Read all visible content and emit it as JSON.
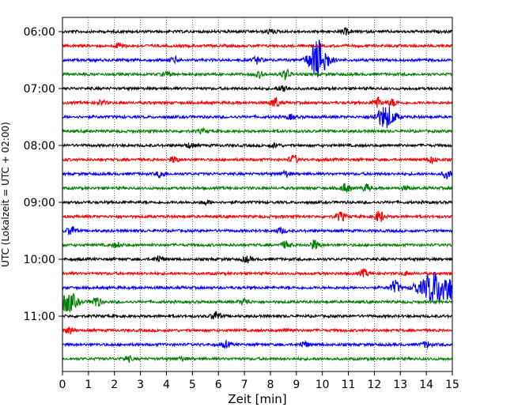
{
  "chart_data": {
    "type": "line",
    "xlabel": "Zeit  [min]",
    "ylabel": "UTC (Lokalzeit = UTC + 02:00)",
    "xlim": [
      0,
      15
    ],
    "xticks": [
      "0",
      "1",
      "2",
      "3",
      "4",
      "5",
      "6",
      "7",
      "8",
      "9",
      "10",
      "11",
      "12",
      "13",
      "14",
      "15"
    ],
    "yticks": [
      "06:00",
      "07:00",
      "08:00",
      "09:00",
      "10:00",
      "11:00"
    ],
    "row_minutes": 15,
    "grid": "vertical-dotted",
    "colors": [
      "#000000",
      "#ff0000",
      "#0000ff",
      "#008000"
    ],
    "rows": [
      {
        "start": "06:00",
        "color": "#000000",
        "events": [
          [
            8,
            0.4
          ],
          [
            10.9,
            0.5
          ]
        ]
      },
      {
        "start": "06:15",
        "color": "#ff0000",
        "events": [
          [
            2.2,
            0.5
          ]
        ]
      },
      {
        "start": "06:30",
        "color": "#0000ff",
        "events": [
          [
            4.3,
            0.5
          ],
          [
            7.5,
            0.6
          ],
          [
            9.85,
            3.6
          ]
        ]
      },
      {
        "start": "06:45",
        "color": "#008000",
        "events": [
          [
            4,
            0.4
          ],
          [
            7.6,
            0.5
          ],
          [
            8.6,
            0.9
          ]
        ]
      },
      {
        "start": "07:00",
        "color": "#000000",
        "events": [
          [
            8.5,
            0.6
          ]
        ]
      },
      {
        "start": "07:15",
        "color": "#ff0000",
        "events": [
          [
            1.5,
            0.4
          ],
          [
            8.2,
            0.9
          ],
          [
            12.1,
            1.0
          ],
          [
            12.7,
            0.6
          ]
        ]
      },
      {
        "start": "07:30",
        "color": "#0000ff",
        "events": [
          [
            8.8,
            0.4
          ],
          [
            12.45,
            2.0
          ]
        ]
      },
      {
        "start": "07:45",
        "color": "#008000",
        "events": [
          [
            5.4,
            0.3
          ]
        ]
      },
      {
        "start": "08:00",
        "color": "#000000",
        "events": [
          [
            4.9,
            0.4
          ],
          [
            8.2,
            0.4
          ]
        ]
      },
      {
        "start": "08:15",
        "color": "#ff0000",
        "events": [
          [
            4.3,
            0.5
          ],
          [
            8.9,
            0.7
          ],
          [
            14.2,
            0.5
          ]
        ]
      },
      {
        "start": "08:30",
        "color": "#0000ff",
        "events": [
          [
            3.8,
            0.6
          ],
          [
            8.6,
            0.5
          ],
          [
            14.8,
            0.7
          ]
        ]
      },
      {
        "start": "08:45",
        "color": "#008000",
        "events": [
          [
            10.9,
            0.8
          ],
          [
            11.7,
            0.6
          ],
          [
            13.2,
            0.3
          ]
        ]
      },
      {
        "start": "09:00",
        "color": "#000000",
        "events": [
          [
            5.5,
            0.3
          ]
        ]
      },
      {
        "start": "09:15",
        "color": "#ff0000",
        "events": [
          [
            10.7,
            0.8
          ],
          [
            12.2,
            1.0
          ]
        ]
      },
      {
        "start": "09:30",
        "color": "#0000ff",
        "events": [
          [
            0.35,
            0.8
          ],
          [
            8.4,
            0.5
          ]
        ]
      },
      {
        "start": "09:45",
        "color": "#008000",
        "events": [
          [
            2.1,
            0.4
          ],
          [
            8.6,
            0.6
          ],
          [
            9.7,
            0.8
          ]
        ]
      },
      {
        "start": "10:00",
        "color": "#000000",
        "events": [
          [
            3.7,
            0.6
          ],
          [
            7.1,
            0.5
          ]
        ]
      },
      {
        "start": "10:15",
        "color": "#ff0000",
        "events": [
          [
            11.6,
            0.6
          ],
          [
            13.2,
            0.3
          ]
        ]
      },
      {
        "start": "10:30",
        "color": "#0000ff",
        "events": [
          [
            12.8,
            1.2
          ],
          [
            13.6,
            0.8
          ],
          [
            14.2,
            2.6
          ],
          [
            14.8,
            2.6
          ]
        ]
      },
      {
        "start": "10:45",
        "color": "#008000",
        "events": [
          [
            0.2,
            1.8
          ],
          [
            1.3,
            1.0
          ],
          [
            7.0,
            0.6
          ]
        ]
      },
      {
        "start": "11:00",
        "color": "#000000",
        "events": [
          [
            5.9,
            0.8
          ]
        ]
      },
      {
        "start": "11:15",
        "color": "#ff0000",
        "events": [
          [
            0.3,
            0.6
          ],
          [
            8.7,
            0.3
          ]
        ]
      },
      {
        "start": "11:30",
        "color": "#0000ff",
        "events": [
          [
            6.3,
            0.5
          ],
          [
            9.3,
            0.5
          ],
          [
            14.0,
            0.5
          ]
        ]
      },
      {
        "start": "11:45",
        "color": "#008000",
        "events": [
          [
            2.5,
            0.5
          ],
          [
            4.6,
            0.3
          ]
        ]
      }
    ]
  }
}
